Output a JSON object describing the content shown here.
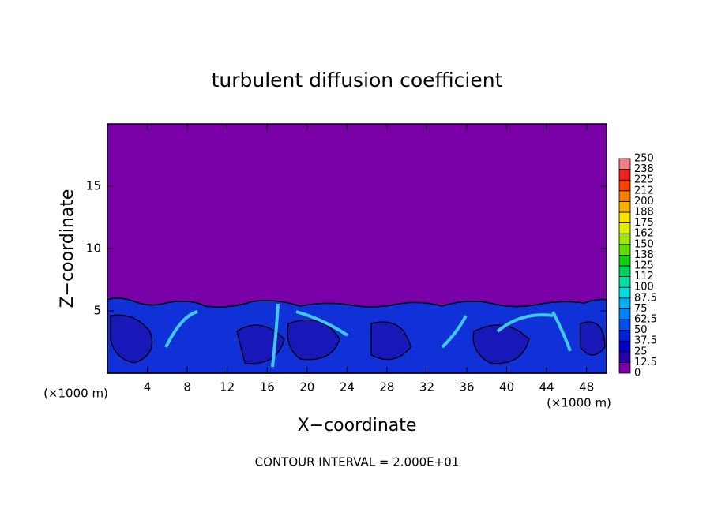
{
  "chart_data": {
    "type": "contour",
    "title": "turbulent diffusion coefficient",
    "xlabel": "X−coordinate",
    "ylabel": "Z−coordinate",
    "xunit": "(×1000 m)",
    "xunit2": "(×1000 m)",
    "note": "CONTOUR INTERVAL = 2.000E+01",
    "xlim": [
      0,
      50
    ],
    "xticks": [
      4,
      8,
      12,
      16,
      20,
      24,
      28,
      32,
      36,
      40,
      44,
      48
    ],
    "ylim": [
      0,
      20
    ],
    "yticks": [
      5,
      10,
      15
    ],
    "colorbar": {
      "levels": [
        0,
        12.5,
        25,
        37.5,
        50,
        62.5,
        75,
        87.5,
        100,
        112,
        125,
        138,
        150,
        162,
        175,
        188,
        200,
        212,
        225,
        238,
        250
      ],
      "colors": [
        "#7a00a8",
        "#2a00a8",
        "#0000c8",
        "#0020e0",
        "#0050f0",
        "#0080f8",
        "#00b0f0",
        "#00e0e0",
        "#00e0a0",
        "#00d060",
        "#10d010",
        "#60e000",
        "#a0e800",
        "#e0f000",
        "#f8e000",
        "#f8b000",
        "#f88000",
        "#f84000",
        "#f02020",
        "#f08080"
      ]
    }
  }
}
